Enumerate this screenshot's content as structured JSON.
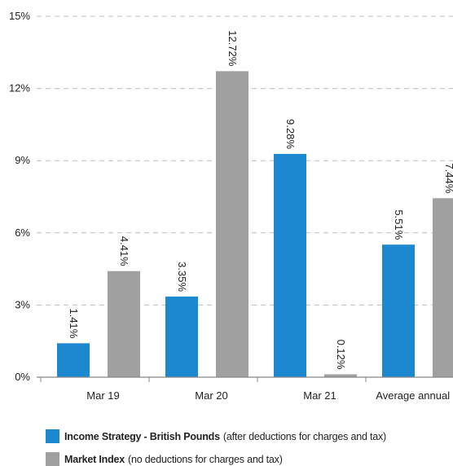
{
  "chart_data": {
    "type": "bar",
    "categories": [
      "Mar 19",
      "Mar 20",
      "Mar 21",
      "Average annual return"
    ],
    "series": [
      {
        "name": "Income Strategy - British Pounds",
        "note": "(after deductions for charges and tax)",
        "color": "#1b88cf",
        "values": [
          1.41,
          3.35,
          9.28,
          5.51
        ],
        "labels": [
          "1.41%",
          "3.35%",
          "9.28%",
          "5.51%"
        ]
      },
      {
        "name": "Market Index",
        "note": "(no deductions for charges and tax)",
        "color": "#a0a0a0",
        "values": [
          4.41,
          12.72,
          0.12,
          7.44
        ],
        "labels": [
          "4.41%",
          "12.72%",
          "0.12%",
          "7.44%"
        ]
      }
    ],
    "yticks": [
      0,
      3,
      6,
      9,
      12,
      15
    ],
    "ytick_labels": [
      "0%",
      "3%",
      "6%",
      "9%",
      "12%",
      "15%"
    ],
    "ylim": [
      0,
      15
    ],
    "grid": "horizontal dashed",
    "legend_position": "bottom-left"
  }
}
